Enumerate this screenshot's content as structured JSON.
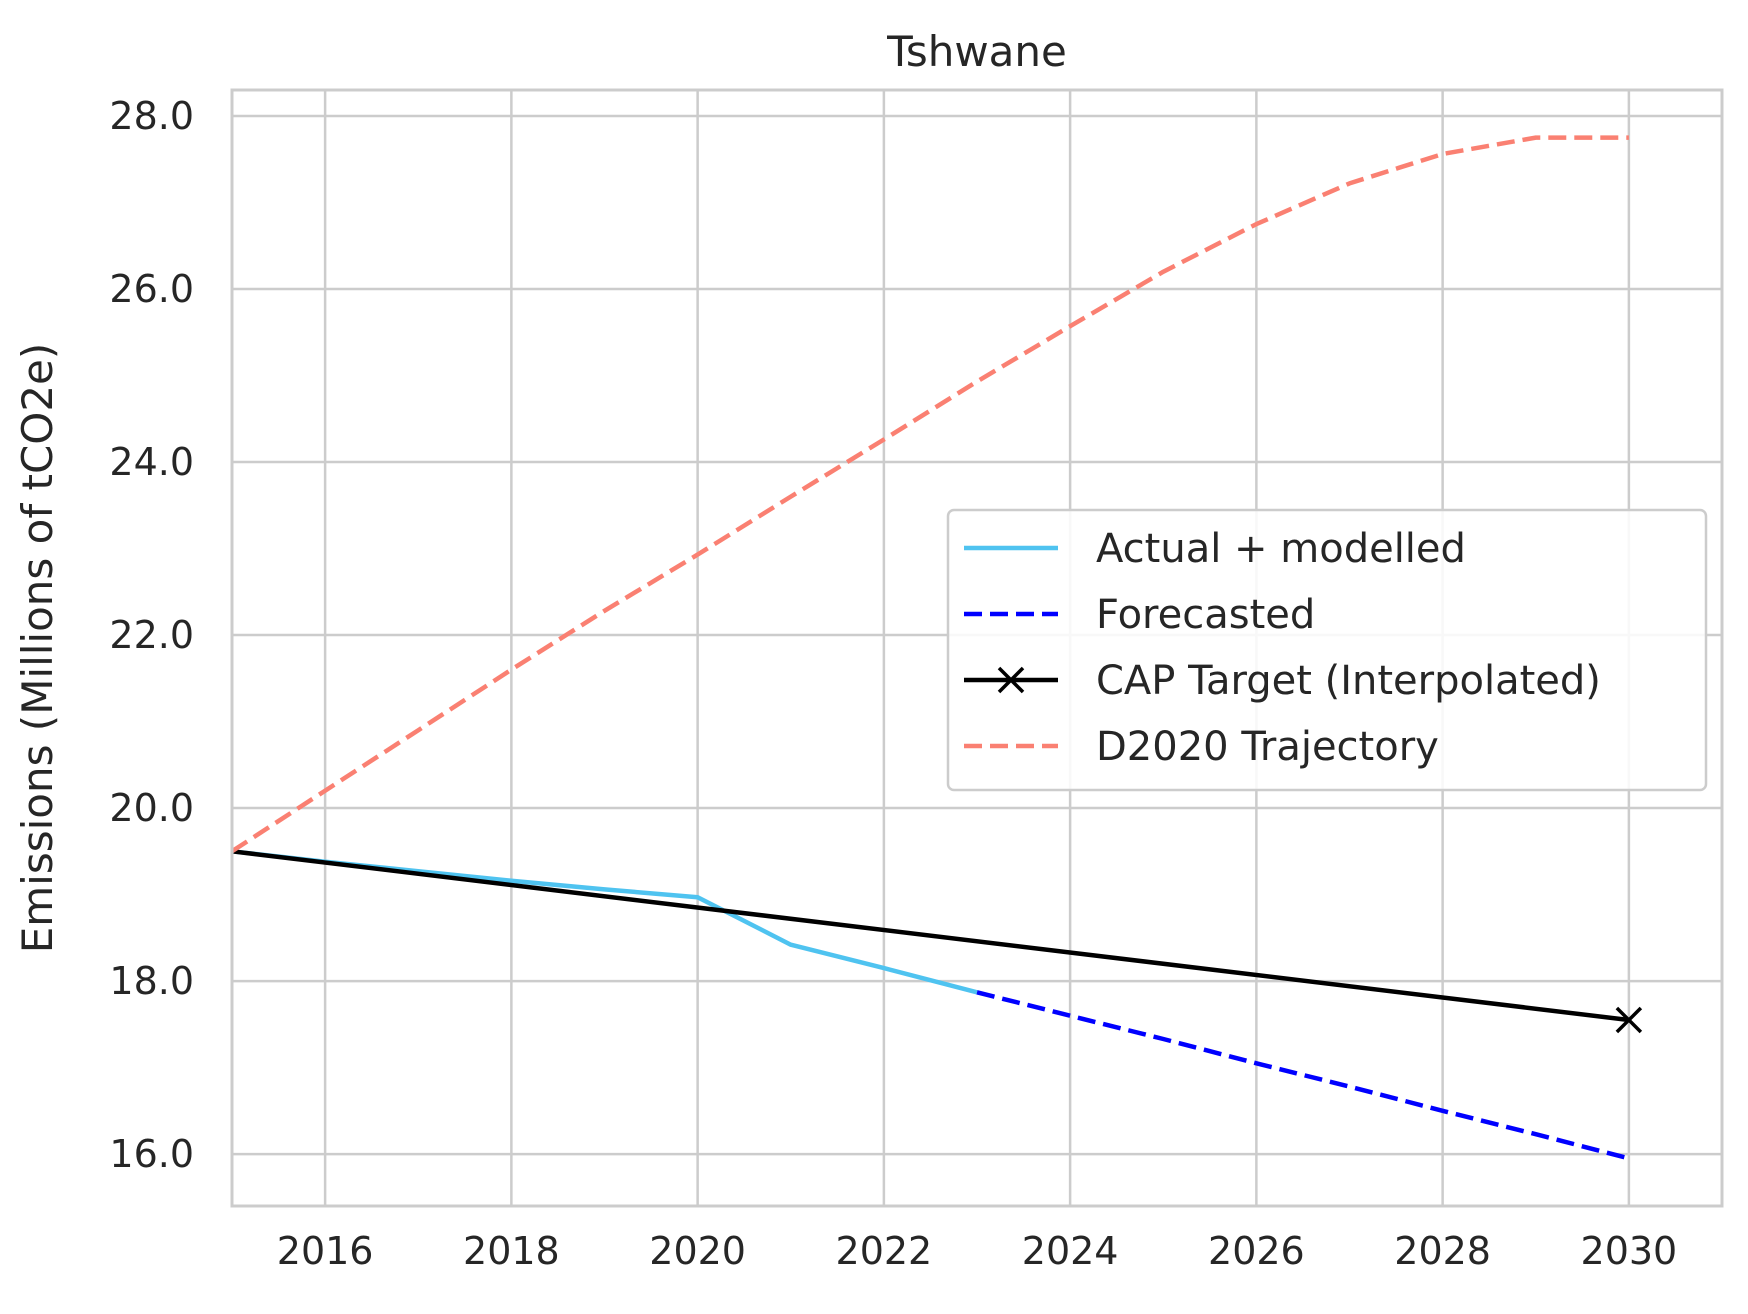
{
  "chart_data": {
    "type": "line",
    "title": "Tshwane",
    "xlabel": "",
    "ylabel": "Emissions (Millions of tCO2e)",
    "xlim": [
      2015,
      2031
    ],
    "ylim": [
      15.4,
      28.3
    ],
    "x_ticks": [
      2016,
      2018,
      2020,
      2022,
      2024,
      2026,
      2028,
      2030
    ],
    "x_tick_labels": [
      "2016",
      "2018",
      "2020",
      "2022",
      "2024",
      "2026",
      "2028",
      "2030"
    ],
    "y_ticks": [
      16,
      18,
      20,
      22,
      24,
      26,
      28
    ],
    "y_tick_labels": [
      "16.0",
      "18.0",
      "20.0",
      "22.0",
      "24.0",
      "26.0",
      "28.0"
    ],
    "grid": true,
    "legend_position": "center-right",
    "series": [
      {
        "name": "Actual + modelled",
        "color": "#4fc3f0",
        "style": "solid",
        "x": [
          2015,
          2016,
          2017,
          2018,
          2019,
          2020,
          2021,
          2022,
          2023
        ],
        "y": [
          19.5,
          19.38,
          19.27,
          19.16,
          19.06,
          18.97,
          18.42,
          18.15,
          17.87
        ]
      },
      {
        "name": "Forecasted",
        "color": "#0000ff",
        "style": "dashed",
        "x": [
          2023,
          2024,
          2025,
          2026,
          2027,
          2028,
          2029,
          2030
        ],
        "y": [
          17.87,
          17.6,
          17.33,
          17.05,
          16.78,
          16.5,
          16.23,
          15.95
        ]
      },
      {
        "name": "CAP Target (Interpolated)",
        "color": "#000000",
        "style": "solid",
        "marker": "x",
        "marker_points": [
          2030
        ],
        "x": [
          2015,
          2030
        ],
        "y": [
          19.5,
          17.55
        ]
      },
      {
        "name": "D2020 Trajectory",
        "color": "#fa8072",
        "style": "dashed",
        "x": [
          2015,
          2016,
          2017,
          2018,
          2019,
          2020,
          2021,
          2022,
          2023,
          2024,
          2025,
          2026,
          2027,
          2028,
          2029,
          2030
        ],
        "y": [
          19.5,
          20.2,
          20.9,
          21.6,
          22.28,
          22.93,
          23.6,
          24.26,
          24.93,
          25.57,
          26.2,
          26.75,
          27.22,
          27.56,
          27.75,
          27.75
        ]
      }
    ]
  }
}
